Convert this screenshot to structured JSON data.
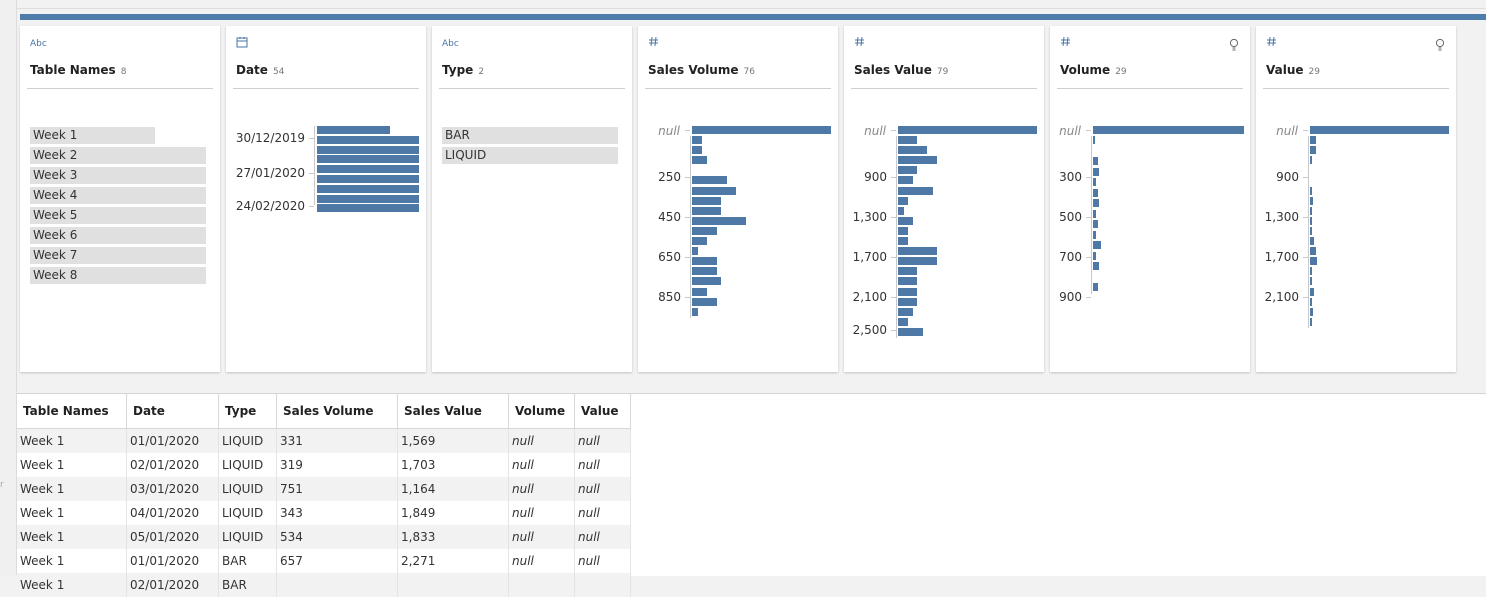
{
  "colors": {
    "accent": "#4d7eab",
    "bar": "#4e79a7",
    "hint": "#666666"
  },
  "cards": [
    {
      "name": "Table Names",
      "count": "8",
      "type_label": "Abc",
      "type_icon": "text-type-icon",
      "has_hint": false,
      "categories": [
        {
          "label": "Week 1",
          "fraction": 0.71
        },
        {
          "label": "Week 2",
          "fraction": 1.0
        },
        {
          "label": "Week 3",
          "fraction": 1.0
        },
        {
          "label": "Week 4",
          "fraction": 1.0
        },
        {
          "label": "Week 5",
          "fraction": 1.0
        },
        {
          "label": "Week 6",
          "fraction": 1.0
        },
        {
          "label": "Week 7",
          "fraction": 1.0
        },
        {
          "label": "Week 8",
          "fraction": 1.0
        }
      ]
    },
    {
      "name": "Date",
      "count": "54",
      "type_label": "",
      "type_icon": "calendar-type-icon",
      "has_hint": false,
      "ticks": [
        "30/12/2019",
        "27/01/2020",
        "24/02/2020"
      ],
      "bars": [
        0.72,
        1.0,
        1.0,
        1.0,
        1.0,
        1.0,
        1.0,
        1.0,
        1.0
      ]
    },
    {
      "name": "Type",
      "count": "2",
      "type_label": "Abc",
      "type_icon": "text-type-icon",
      "has_hint": false,
      "categories": [
        {
          "label": "BAR",
          "fraction": 1.0
        },
        {
          "label": "LIQUID",
          "fraction": 1.0
        }
      ]
    },
    {
      "name": "Sales Volume",
      "count": "76",
      "type_label": "",
      "type_icon": "number-type-icon",
      "has_hint": false,
      "null_label": "null",
      "null_fraction": 1.0,
      "ticks": [
        "250",
        "450",
        "650",
        "850"
      ],
      "bars": [
        0.07,
        0.07,
        0.11,
        0,
        0.25,
        0.32,
        0.21,
        0.21,
        0.39,
        0.18,
        0.11,
        0.04,
        0.18,
        0.18,
        0.21,
        0.11,
        0.18,
        0.04
      ]
    },
    {
      "name": "Sales Value",
      "count": "79",
      "type_label": "",
      "type_icon": "number-type-icon",
      "has_hint": false,
      "null_label": "null",
      "null_fraction": 1.0,
      "ticks": [
        "900",
        "1,300",
        "1,700",
        "2,100",
        "2,500"
      ],
      "bars": [
        0.14,
        0.21,
        0.28,
        0.14,
        0.11,
        0.25,
        0.07,
        0.04,
        0.11,
        0.07,
        0.07,
        0.28,
        0.28,
        0.14,
        0.14,
        0.14,
        0.14,
        0.11,
        0.07,
        0.18
      ]
    },
    {
      "name": "Volume",
      "count": "29",
      "type_label": "",
      "type_icon": "number-type-icon",
      "has_hint": true,
      "null_label": "null",
      "null_fraction": 1.0,
      "ticks": [
        "300",
        "500",
        "700",
        "900"
      ],
      "bars": [
        0.01,
        0,
        0.03,
        0.04,
        0.02,
        0.03,
        0.04,
        0.02,
        0.03,
        0.02,
        0.05,
        0.02,
        0.04,
        0,
        0.03
      ]
    },
    {
      "name": "Value",
      "count": "29",
      "type_label": "",
      "type_icon": "number-type-icon",
      "has_hint": true,
      "null_label": "null",
      "null_fraction": 1.0,
      "ticks": [
        "900",
        "1,300",
        "1,700",
        "2,100"
      ],
      "bars": [
        0.04,
        0.04,
        0.01,
        0,
        0,
        0.01,
        0.02,
        0.01,
        0.01,
        0.01,
        0.03,
        0.04,
        0.05,
        0.01,
        0.01,
        0.03,
        0.01,
        0.02,
        0.01
      ]
    }
  ],
  "table": {
    "columns": [
      "Table Names",
      "Date",
      "Type",
      "Sales Volume",
      "Sales Value",
      "Volume",
      "Value"
    ],
    "rows": [
      [
        "Week 1",
        "01/01/2020",
        "LIQUID",
        "331",
        "1,569",
        "null",
        "null"
      ],
      [
        "Week 1",
        "02/01/2020",
        "LIQUID",
        "319",
        "1,703",
        "null",
        "null"
      ],
      [
        "Week 1",
        "03/01/2020",
        "LIQUID",
        "751",
        "1,164",
        "null",
        "null"
      ],
      [
        "Week 1",
        "04/01/2020",
        "LIQUID",
        "343",
        "1,849",
        "null",
        "null"
      ],
      [
        "Week 1",
        "05/01/2020",
        "LIQUID",
        "534",
        "1,833",
        "null",
        "null"
      ],
      [
        "Week 1",
        "01/01/2020",
        "BAR",
        "657",
        "2,271",
        "null",
        "null"
      ],
      [
        "Week 1",
        "02/01/2020",
        "BAR",
        "",
        "",
        "",
        ""
      ]
    ]
  }
}
